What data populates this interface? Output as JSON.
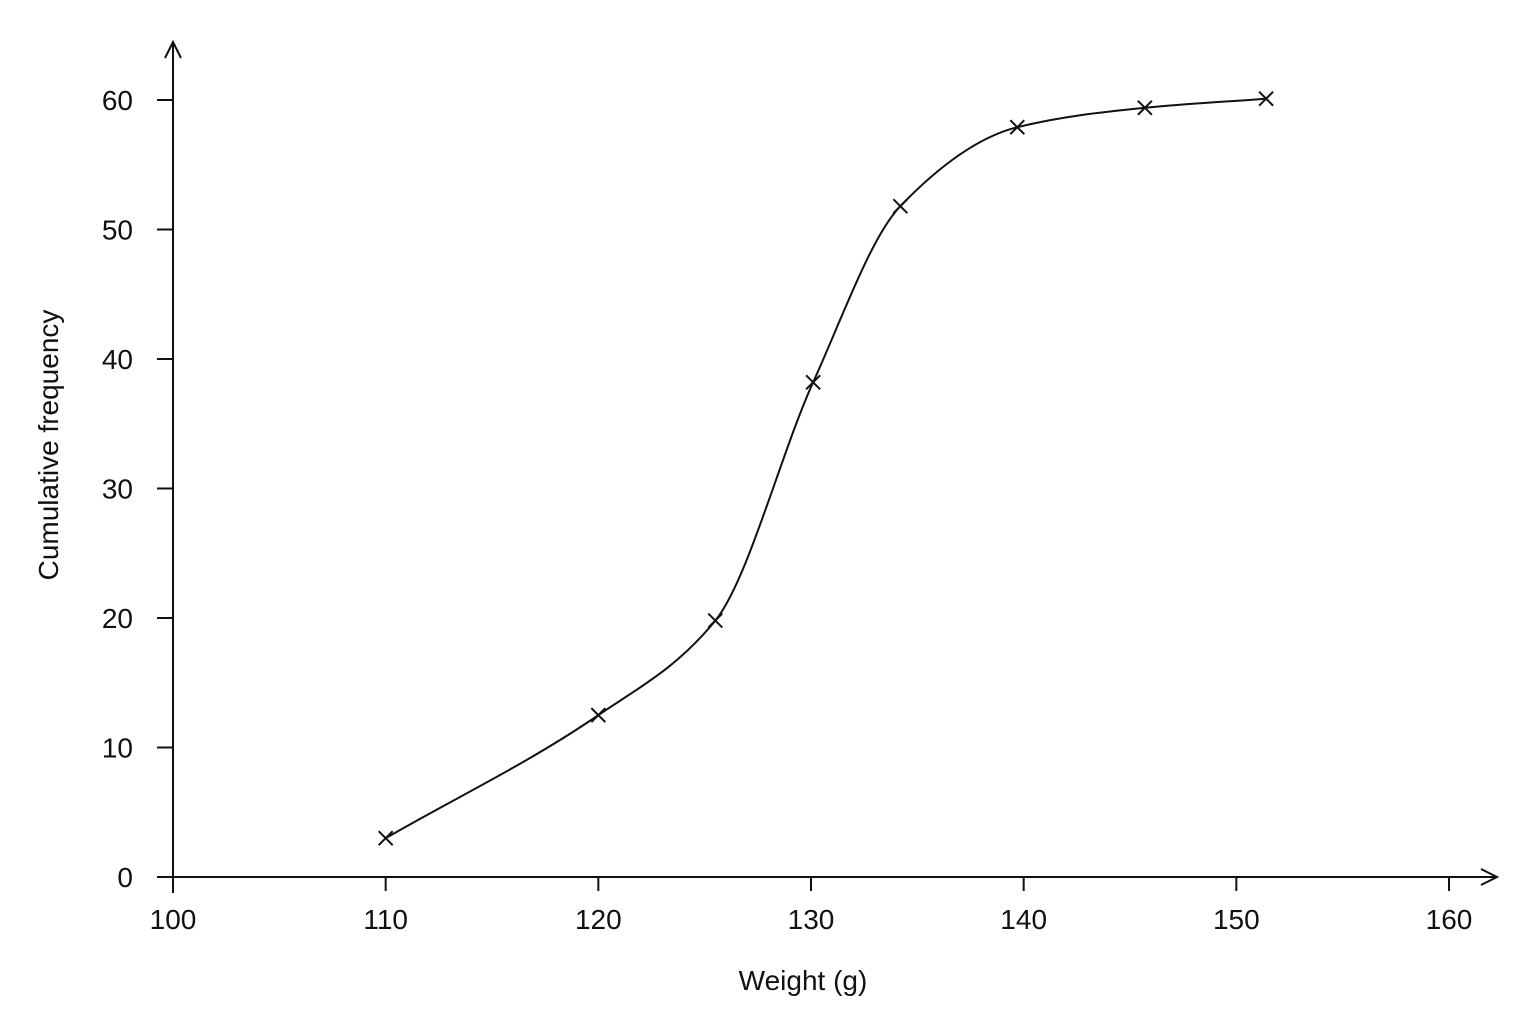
{
  "chart_data": {
    "type": "line",
    "title": "",
    "xlabel": "Weight (g)",
    "ylabel": "Cumulative frequency",
    "xlim": [
      100,
      160
    ],
    "ylim": [
      0,
      60
    ],
    "x_ticks": [
      "100",
      "110",
      "120",
      "130",
      "140",
      "150",
      "160"
    ],
    "y_ticks": [
      "0",
      "10",
      "20",
      "30",
      "40",
      "50",
      "60"
    ],
    "grid": false,
    "marker": "x",
    "color": "#111111",
    "series": [
      {
        "x": [
          110,
          120,
          125.5,
          130.1,
          134.2,
          139.7,
          145.7,
          151.4
        ],
        "y": [
          3,
          12.5,
          19.8,
          38.2,
          51.8,
          57.9,
          59.4,
          60.1
        ]
      }
    ]
  }
}
